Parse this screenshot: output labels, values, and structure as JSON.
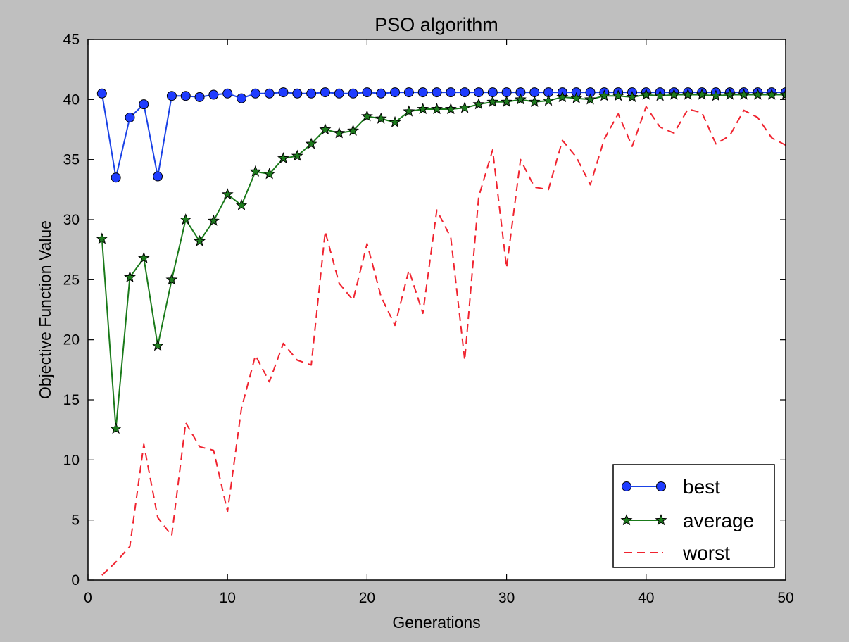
{
  "chart_data": {
    "type": "line",
    "title": "PSO algorithm",
    "xlabel": "Generations",
    "ylabel": "Objective Function Value",
    "xlim": [
      0,
      50
    ],
    "ylim": [
      0,
      45
    ],
    "xticks": [
      0,
      10,
      20,
      30,
      40,
      50
    ],
    "yticks": [
      0,
      5,
      10,
      15,
      20,
      25,
      30,
      35,
      40,
      45
    ],
    "grid": false,
    "legend_position": "lower-right",
    "x": [
      1,
      2,
      3,
      4,
      5,
      6,
      7,
      8,
      9,
      10,
      11,
      12,
      13,
      14,
      15,
      16,
      17,
      18,
      19,
      20,
      21,
      22,
      23,
      24,
      25,
      26,
      27,
      28,
      29,
      30,
      31,
      32,
      33,
      34,
      35,
      36,
      37,
      38,
      39,
      40,
      41,
      42,
      43,
      44,
      45,
      46,
      47,
      48,
      49,
      50
    ],
    "series": [
      {
        "name": "best",
        "style": "solid-circle",
        "line_color": "#1a42e6",
        "marker_color": "#1f3cff",
        "values": [
          40.5,
          33.5,
          38.5,
          39.6,
          33.6,
          40.3,
          40.3,
          40.2,
          40.4,
          40.5,
          40.1,
          40.5,
          40.5,
          40.6,
          40.5,
          40.5,
          40.6,
          40.5,
          40.5,
          40.6,
          40.5,
          40.6,
          40.6,
          40.6,
          40.6,
          40.6,
          40.6,
          40.6,
          40.6,
          40.6,
          40.6,
          40.6,
          40.6,
          40.6,
          40.6,
          40.6,
          40.6,
          40.6,
          40.6,
          40.6,
          40.6,
          40.6,
          40.6,
          40.6,
          40.6,
          40.6,
          40.6,
          40.6,
          40.6,
          40.6
        ]
      },
      {
        "name": "average",
        "style": "solid-star",
        "line_color": "#1a7a1a",
        "marker_color": "#1e7d1e",
        "values": [
          28.4,
          12.6,
          25.2,
          26.8,
          19.5,
          25.0,
          30.0,
          28.2,
          29.9,
          32.1,
          31.2,
          34.0,
          33.8,
          35.1,
          35.3,
          36.3,
          37.5,
          37.2,
          37.4,
          38.6,
          38.4,
          38.1,
          39.0,
          39.2,
          39.2,
          39.2,
          39.3,
          39.6,
          39.8,
          39.8,
          40.0,
          39.8,
          39.9,
          40.2,
          40.1,
          40.0,
          40.3,
          40.3,
          40.2,
          40.4,
          40.3,
          40.4,
          40.4,
          40.4,
          40.3,
          40.4,
          40.4,
          40.4,
          40.4,
          40.4
        ]
      },
      {
        "name": "worst",
        "style": "dashed",
        "line_color": "#f0232f",
        "values": [
          0.4,
          1.5,
          2.8,
          11.3,
          5.2,
          3.7,
          13.1,
          11.1,
          10.8,
          5.7,
          14.3,
          18.7,
          16.5,
          19.7,
          18.3,
          17.9,
          29.0,
          24.7,
          23.3,
          28.0,
          23.6,
          21.2,
          25.8,
          22.2,
          30.8,
          28.5,
          18.3,
          31.9,
          35.8,
          26.0,
          35.0,
          32.7,
          32.5,
          36.6,
          35.2,
          32.9,
          36.7,
          38.8,
          36.1,
          39.4,
          37.7,
          37.2,
          39.2,
          38.9,
          36.3,
          37.0,
          39.1,
          38.5,
          36.8,
          36.2
        ]
      }
    ]
  }
}
